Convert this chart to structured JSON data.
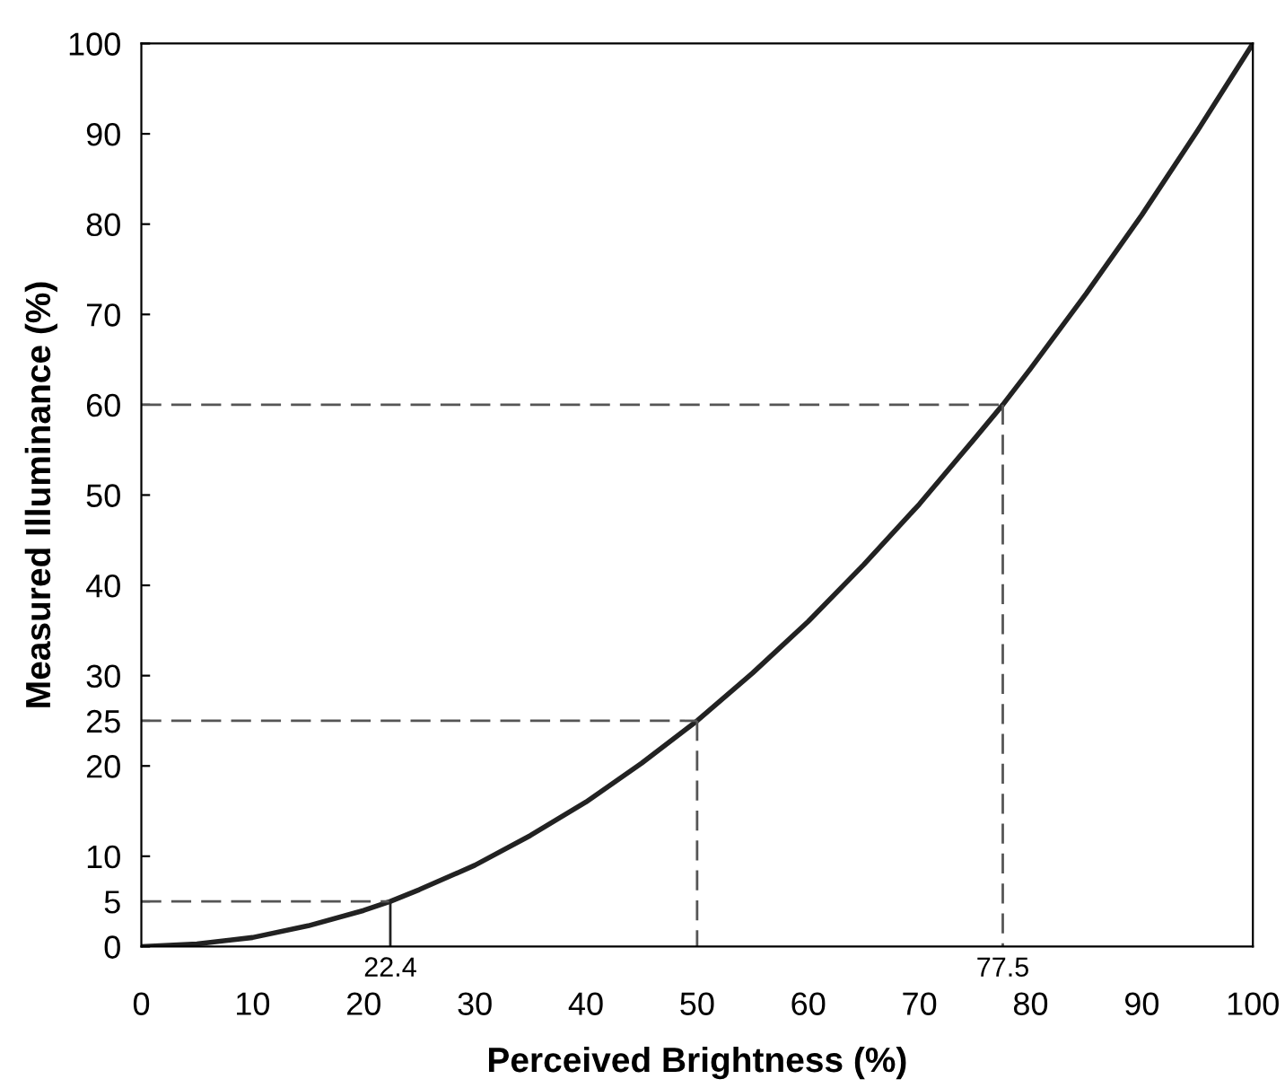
{
  "chart_data": {
    "type": "line",
    "xlabel": "Perceived Brightness (%)",
    "ylabel": "Measured Illuminance (%)",
    "xlim": [
      0,
      100
    ],
    "ylim": [
      0,
      100
    ],
    "xticks": [
      0,
      10,
      20,
      30,
      40,
      50,
      60,
      70,
      80,
      90,
      100
    ],
    "annotations": [
      {
        "text": "22.4",
        "x": 22.4,
        "y": 0
      },
      {
        "text": "77.5",
        "x": 77.5,
        "y": 0
      }
    ],
    "yticks": [
      0,
      5,
      10,
      20,
      25,
      30,
      40,
      50,
      60,
      70,
      80,
      90,
      100
    ],
    "grid": false,
    "legend": false,
    "series": [
      {
        "color": "#222222",
        "line_style": "solid",
        "x": [
          0,
          5,
          10,
          15,
          20,
          22.4,
          25,
          30,
          35,
          40,
          45,
          50,
          55,
          60,
          65,
          70,
          75,
          77.5,
          80,
          85,
          90,
          95,
          100
        ],
        "values": [
          0,
          0.3,
          1,
          2.3,
          4,
          5,
          6.3,
          9,
          12.3,
          16,
          20.3,
          25,
          30.3,
          36,
          42.3,
          49,
          56.3,
          60,
          64,
          72.3,
          81,
          90.3,
          100
        ]
      },
      {
        "color": "#555555",
        "line_style": "dashed",
        "x": [
          0,
          22.4
        ],
        "values": [
          5,
          5
        ]
      },
      {
        "color": "#222222",
        "line_style": "solid",
        "x": [
          22.4,
          22.4
        ],
        "values": [
          0,
          5
        ]
      },
      {
        "color": "#555555",
        "line_style": "dashed",
        "x": [
          0,
          50
        ],
        "values": [
          25,
          25
        ]
      },
      {
        "color": "#555555",
        "line_style": "dashed",
        "x": [
          50,
          50
        ],
        "values": [
          25,
          0
        ]
      },
      {
        "color": "#555555",
        "line_style": "dashed",
        "x": [
          0,
          77.5
        ],
        "values": [
          60,
          60
        ]
      },
      {
        "color": "#555555",
        "line_style": "dashed",
        "x": [
          77.5,
          77.5
        ],
        "values": [
          60,
          0
        ]
      }
    ]
  }
}
